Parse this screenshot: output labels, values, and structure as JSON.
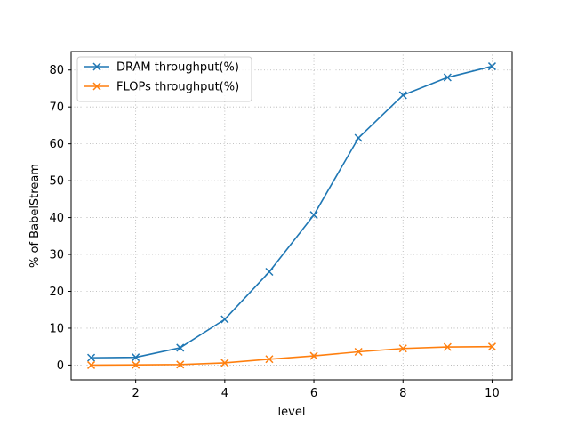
{
  "chart_data": {
    "type": "line",
    "title": "",
    "xlabel": "level",
    "ylabel": "% of BabelStream",
    "xlim": [
      0.55,
      10.45
    ],
    "ylim": [
      -4.0,
      85.0
    ],
    "xticks": [
      2,
      4,
      6,
      8,
      10
    ],
    "yticks": [
      0,
      10,
      20,
      30,
      40,
      50,
      60,
      70,
      80
    ],
    "grid": true,
    "legend_position": "top-left",
    "marker": "x",
    "x": [
      1,
      2,
      3,
      4,
      5,
      6,
      7,
      8,
      9,
      10
    ],
    "series": [
      {
        "name": "DRAM throughput(%)",
        "color": "#1f77b4",
        "values": [
          2.0,
          2.1,
          4.7,
          12.4,
          25.3,
          40.7,
          61.6,
          73.2,
          78.0,
          81.0
        ]
      },
      {
        "name": "FLOPs throughput(%)",
        "color": "#ff7f0e",
        "values": [
          0.0,
          0.05,
          0.15,
          0.6,
          1.6,
          2.5,
          3.6,
          4.5,
          4.9,
          5.0
        ]
      }
    ]
  }
}
